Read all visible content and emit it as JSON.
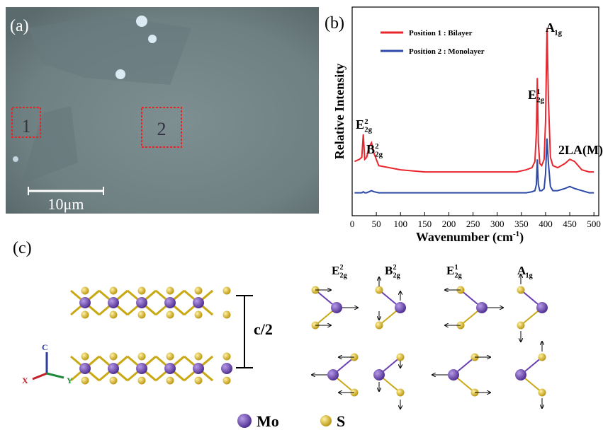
{
  "panel_a": {
    "label": "(a)",
    "boxes": [
      "1",
      "2"
    ],
    "scale_bar": "10μm"
  },
  "chart_data": {
    "type": "line",
    "panel_label": "(b)",
    "y_label": "Relative Intensity",
    "x_label": {
      "text": "Wavenumber (cm",
      "sup": "-1",
      "tail": ")"
    },
    "x": [
      5,
      15,
      20,
      23,
      26,
      30,
      35,
      40,
      45,
      55,
      100,
      150,
      200,
      250,
      300,
      340,
      360,
      372,
      378,
      381,
      383,
      385,
      388,
      392,
      397,
      400,
      403,
      406,
      410,
      415,
      425,
      440,
      450,
      460,
      475,
      490,
      500
    ],
    "series": [
      {
        "name": "Position 1 : Bilayer",
        "color": "#e8262d",
        "values": [
          26,
          27,
          28,
          39,
          27,
          28,
          33,
          35,
          30,
          24,
          22,
          21,
          21,
          21,
          21,
          21,
          22,
          23,
          26,
          40,
          66,
          35,
          25,
          24,
          27,
          45,
          90,
          55,
          28,
          24,
          23,
          25,
          27,
          26,
          22,
          21,
          21
        ]
      },
      {
        "name": "Position 2 : Monolayer",
        "color": "#2d4aa8",
        "values": [
          11,
          11,
          11,
          11.5,
          11,
          11,
          11.5,
          12,
          11.5,
          11,
          11,
          11,
          11,
          11,
          11,
          11,
          11,
          11.5,
          12,
          15,
          27,
          15,
          12,
          12,
          13,
          20,
          37,
          25,
          14,
          12,
          12,
          13,
          14,
          13,
          12,
          11,
          11
        ]
      }
    ],
    "xlim": [
      0,
      510
    ],
    "ylim": [
      0,
      100
    ],
    "xticks": [
      0,
      50,
      100,
      150,
      200,
      250,
      300,
      350,
      400,
      450,
      500
    ],
    "legend": "upper-left",
    "annotations": [
      {
        "base": "A",
        "sub": "1g"
      },
      {
        "base": "E",
        "sup": "1",
        "sub": "2g"
      },
      {
        "base": "E",
        "sup": "2",
        "sub": "2g"
      },
      {
        "base": "B",
        "sup": "2",
        "sub": "2g"
      },
      {
        "base": "2LA(M)"
      }
    ]
  },
  "panel_c": {
    "label": "(c)",
    "spacing": "c/2",
    "axes": [
      "C",
      "X",
      "Y"
    ],
    "modes": [
      {
        "base": "E",
        "sup": "2",
        "sub": "2g"
      },
      {
        "base": "B",
        "sup": "2",
        "sub": "2g"
      },
      {
        "base": "E",
        "sup": "1",
        "sub": "2g"
      },
      {
        "base": "A",
        "sub": "1g"
      }
    ],
    "legend": [
      "Mo",
      "S"
    ]
  }
}
